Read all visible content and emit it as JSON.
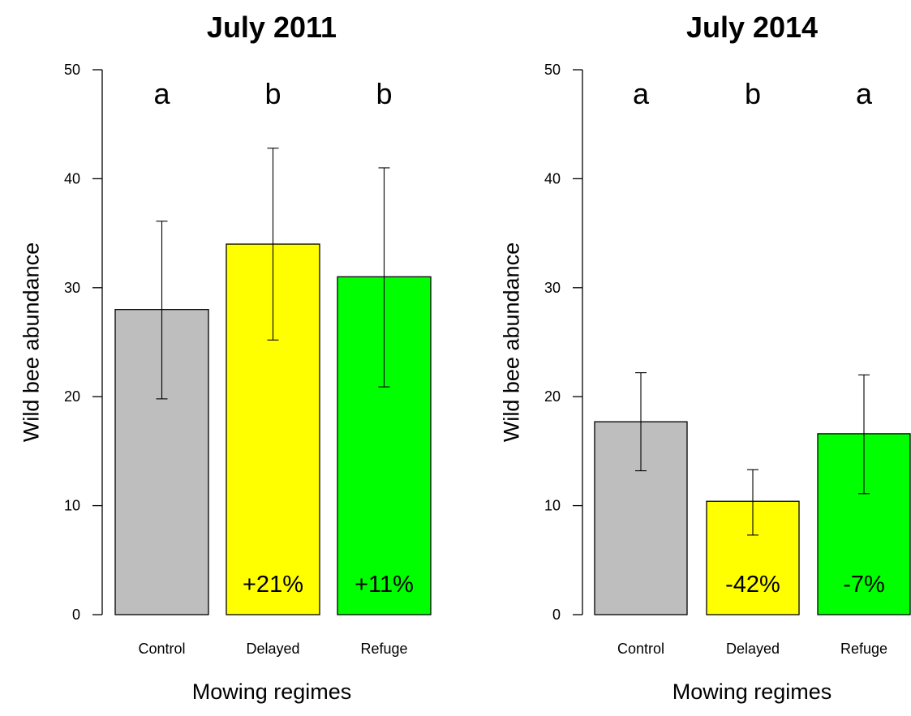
{
  "chart_data": [
    {
      "type": "bar",
      "title": "July 2011",
      "xlabel": "Mowing regimes",
      "ylabel": "Wild bee abundance",
      "ylim": [
        0,
        50
      ],
      "yticks": [
        0,
        10,
        20,
        30,
        40,
        50
      ],
      "categories": [
        "Control",
        "Delayed",
        "Refuge"
      ],
      "values": [
        28,
        34,
        31
      ],
      "error_low": [
        19.8,
        25.2,
        20.9
      ],
      "error_high": [
        36.1,
        42.8,
        41.0
      ],
      "significance_letters": [
        "a",
        "b",
        "b"
      ],
      "percent_change_labels": [
        "",
        "+21%",
        "+11%"
      ],
      "colors": [
        "#bebebe",
        "#ffff00",
        "#00ff00"
      ],
      "grid": false,
      "legend": "none"
    },
    {
      "type": "bar",
      "title": "July 2014",
      "xlabel": "Mowing regimes",
      "ylabel": "Wild bee abundance",
      "ylim": [
        0,
        50
      ],
      "yticks": [
        0,
        10,
        20,
        30,
        40,
        50
      ],
      "categories": [
        "Control",
        "Delayed",
        "Refuge"
      ],
      "values": [
        17.7,
        10.4,
        16.6
      ],
      "error_low": [
        13.2,
        7.3,
        11.1
      ],
      "error_high": [
        22.2,
        13.3,
        22.0
      ],
      "significance_letters": [
        "a",
        "b",
        "a"
      ],
      "percent_change_labels": [
        "",
        "-42%",
        "-7%"
      ],
      "colors": [
        "#bebebe",
        "#ffff00",
        "#00ff00"
      ],
      "grid": false,
      "legend": "none"
    }
  ]
}
